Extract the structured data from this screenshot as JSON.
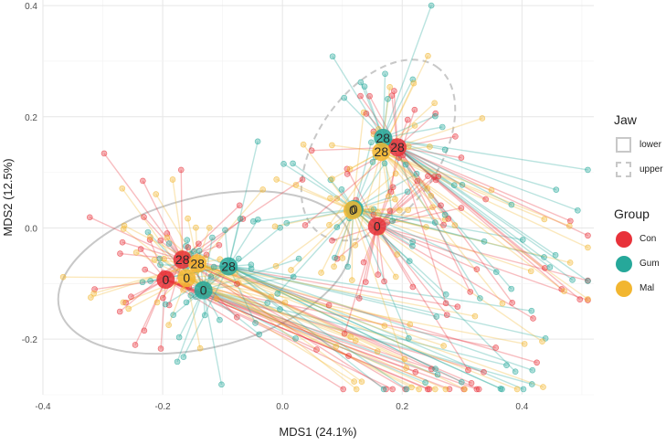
{
  "chart_data": {
    "type": "scatter",
    "title": "",
    "xlabel": "MDS1 (24.1%)",
    "ylabel": "MDS2 (12.5%)",
    "xlim": [
      -0.4,
      0.52
    ],
    "ylim": [
      -0.3,
      0.41
    ],
    "xticks": [
      -0.4,
      -0.2,
      0.0,
      0.2,
      0.4
    ],
    "yticks": [
      -0.2,
      0.0,
      0.2,
      0.4
    ],
    "xtick_labels": [
      "-0.4",
      "-0.2",
      "0.0",
      "0.2",
      "0.4"
    ],
    "ytick_labels": [
      "-0.2",
      "0.0",
      "0.2",
      "0.4"
    ],
    "grid": true,
    "groups": [
      {
        "name": "Con",
        "color": "#e8323a"
      },
      {
        "name": "Gum",
        "color": "#26a89a"
      },
      {
        "name": "Mal",
        "color": "#f2b630"
      }
    ],
    "jaw": [
      {
        "name": "lower",
        "line": "solid"
      },
      {
        "name": "upper",
        "line": "dashed"
      }
    ],
    "centroids": [
      {
        "group": "Con",
        "jaw": "lower",
        "label": "0",
        "x": -0.195,
        "y": -0.093
      },
      {
        "group": "Gum",
        "jaw": "lower",
        "label": "0",
        "x": -0.132,
        "y": -0.112
      },
      {
        "group": "Mal",
        "jaw": "lower",
        "label": "0",
        "x": -0.16,
        "y": -0.09
      },
      {
        "group": "Con",
        "jaw": "lower",
        "label": "28",
        "x": -0.167,
        "y": -0.057
      },
      {
        "group": "Gum",
        "jaw": "lower",
        "label": "28",
        "x": -0.09,
        "y": -0.069
      },
      {
        "group": "Mal",
        "jaw": "lower",
        "label": "28",
        "x": -0.142,
        "y": -0.064
      },
      {
        "group": "Con",
        "jaw": "upper",
        "label": "0",
        "x": 0.158,
        "y": 0.003
      },
      {
        "group": "Gum",
        "jaw": "upper",
        "label": "0",
        "x": 0.12,
        "y": 0.034
      },
      {
        "group": "Mal",
        "jaw": "upper",
        "label": "0",
        "x": 0.117,
        "y": 0.032
      },
      {
        "group": "Con",
        "jaw": "upper",
        "label": "28",
        "x": 0.192,
        "y": 0.145
      },
      {
        "group": "Gum",
        "jaw": "upper",
        "label": "28",
        "x": 0.168,
        "y": 0.162
      },
      {
        "group": "Mal",
        "jaw": "upper",
        "label": "28",
        "x": 0.165,
        "y": 0.137
      }
    ],
    "ellipses": [
      {
        "jaw": "lower",
        "cx": -0.13,
        "cy": -0.08,
        "rx": 0.25,
        "ry": 0.135,
        "angle": -14
      },
      {
        "jaw": "upper",
        "cx": 0.16,
        "cy": 0.14,
        "rx": 0.17,
        "ry": 0.11,
        "angle": -55
      }
    ],
    "samples_per_centroid": 28
  },
  "legend": {
    "jaw_title": "Jaw",
    "jaw_items": [
      "lower",
      "upper"
    ],
    "group_title": "Group",
    "group_items": [
      "Con",
      "Gum",
      "Mal"
    ]
  }
}
